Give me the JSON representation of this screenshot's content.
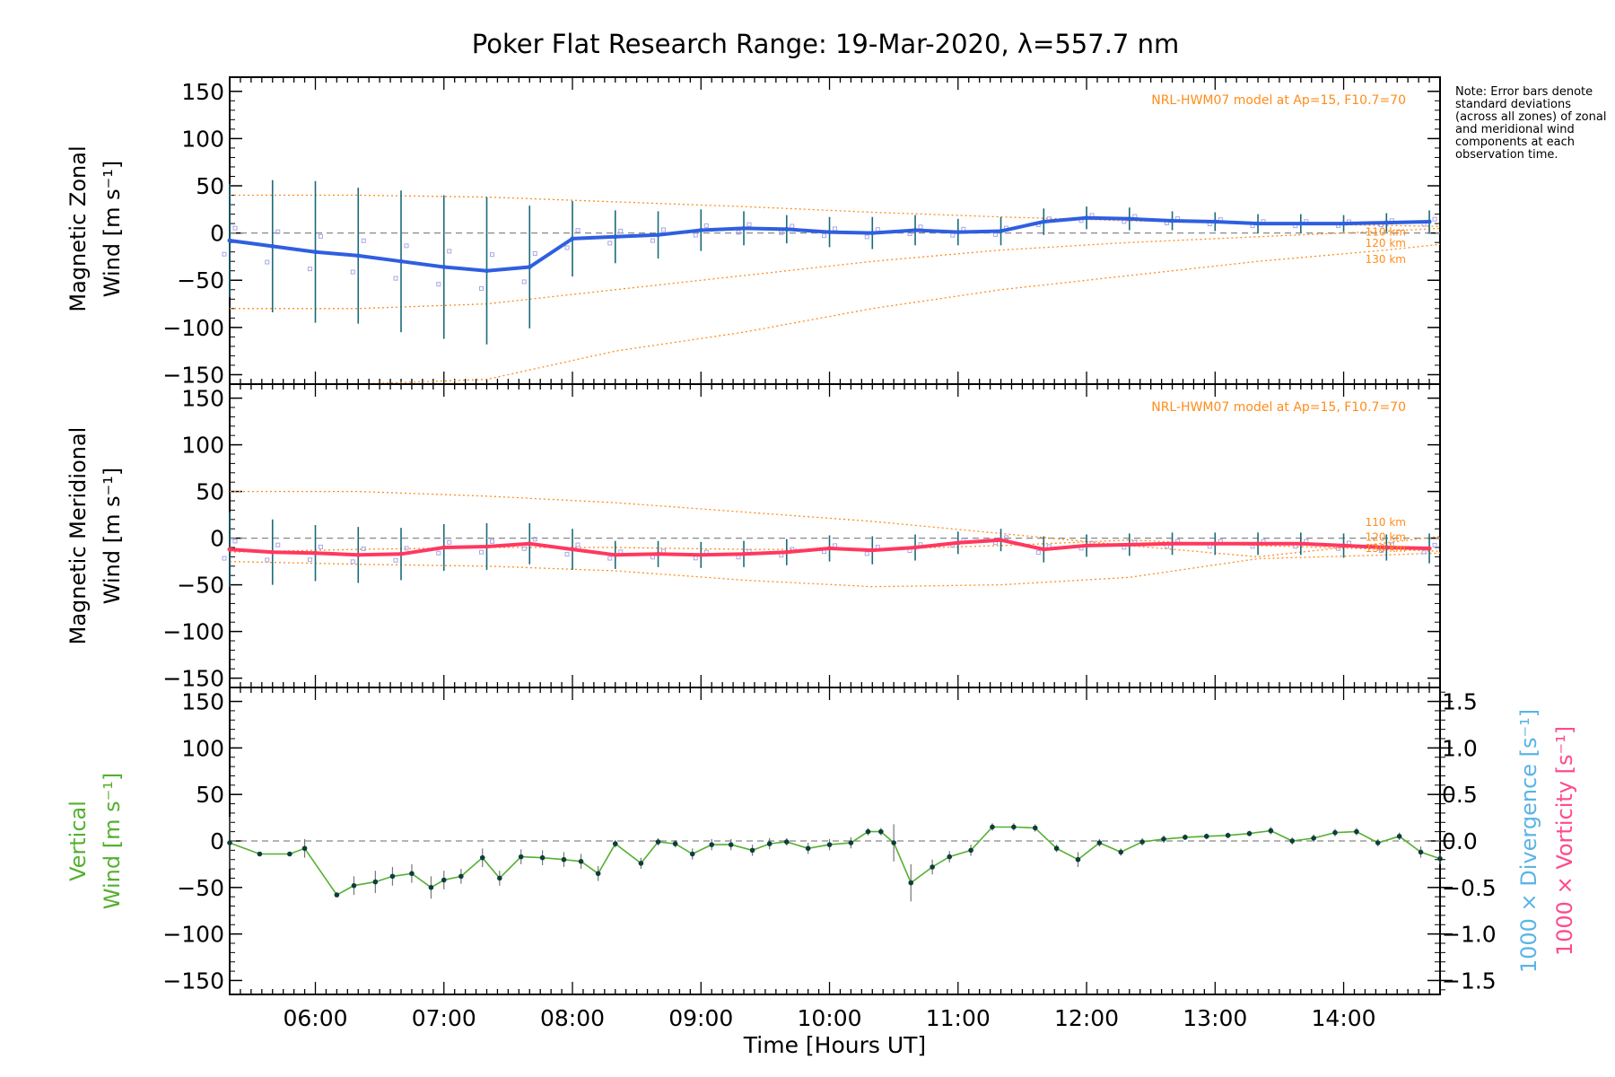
{
  "figure": {
    "title": "Poker Flat Research Range: 19-Mar-2020, λ=557.7 nm",
    "note": "Note: Error bars denote standard deviations (across all zones) of zonal and meridional wind components at each observation time.",
    "model_label": "NRL-HWM07 model at Ap=15, F10.7=70",
    "altitude_labels": [
      "110 km",
      "120 km",
      "130 km"
    ],
    "colors": {
      "zonal": "#2f5fe0",
      "meridional": "#ff3860",
      "vertical": "#55b030",
      "divergence": "#5ab4e6",
      "vorticity": "#ff4a8d",
      "model": "#ff8c1a",
      "errorbar": "#1a6a7a",
      "zone_points": "#a9a6e6"
    }
  },
  "chart_data": [
    {
      "type": "line",
      "name": "zonal",
      "ylabel": "Magnetic Zonal Wind [m s⁻¹]",
      "ylim": [
        -160,
        165
      ],
      "yticks": [
        150,
        100,
        50,
        0,
        -50,
        -100,
        -150
      ],
      "xlim": [
        "05:20",
        "14:45"
      ],
      "x": [
        "05:20",
        "05:40",
        "06:00",
        "06:20",
        "06:40",
        "07:00",
        "07:20",
        "07:40",
        "08:00",
        "08:20",
        "08:40",
        "09:00",
        "09:20",
        "09:40",
        "10:00",
        "10:20",
        "10:40",
        "11:00",
        "11:20",
        "11:40",
        "12:00",
        "12:20",
        "12:40",
        "13:00",
        "13:20",
        "13:40",
        "14:00",
        "14:20",
        "14:40"
      ],
      "y": [
        -8,
        -14,
        -20,
        -24,
        -30,
        -36,
        -40,
        -36,
        -6,
        -4,
        -2,
        3,
        5,
        4,
        1,
        0,
        3,
        1,
        2,
        12,
        16,
        15,
        13,
        12,
        10,
        10,
        10,
        11,
        12
      ],
      "error": [
        60,
        70,
        75,
        72,
        75,
        76,
        78,
        65,
        40,
        28,
        25,
        22,
        18,
        15,
        16,
        17,
        16,
        14,
        15,
        14,
        12,
        12,
        10,
        10,
        10,
        10,
        9,
        10,
        12
      ],
      "model": {
        "x": [
          "05:20",
          "06:20",
          "07:20",
          "08:20",
          "09:20",
          "10:20",
          "11:20",
          "12:20",
          "13:20",
          "14:20",
          "14:45"
        ],
        "110 km": [
          -80,
          -80,
          -75,
          -60,
          -45,
          -30,
          -18,
          -10,
          -4,
          2,
          5
        ],
        "120 km": [
          40,
          40,
          38,
          33,
          28,
          22,
          17,
          13,
          10,
          8,
          7
        ],
        "130 km": [
          -160,
          -160,
          -155,
          -125,
          -105,
          -80,
          -60,
          -45,
          -30,
          -18,
          -12
        ]
      }
    },
    {
      "type": "line",
      "name": "meridional",
      "ylabel": "Magnetic Meridional Wind [m s⁻¹]",
      "ylim": [
        -160,
        165
      ],
      "yticks": [
        150,
        100,
        50,
        0,
        -50,
        -100,
        -150
      ],
      "xlim": [
        "05:20",
        "14:45"
      ],
      "x": [
        "05:20",
        "05:40",
        "06:00",
        "06:20",
        "06:40",
        "07:00",
        "07:20",
        "07:40",
        "08:00",
        "08:20",
        "08:40",
        "09:00",
        "09:20",
        "09:40",
        "10:00",
        "10:20",
        "10:40",
        "11:00",
        "11:20",
        "11:40",
        "12:00",
        "12:20",
        "12:40",
        "13:00",
        "13:20",
        "13:40",
        "14:00",
        "14:20",
        "14:40"
      ],
      "y": [
        -12,
        -15,
        -16,
        -18,
        -17,
        -10,
        -9,
        -6,
        -12,
        -18,
        -17,
        -18,
        -17,
        -15,
        -11,
        -13,
        -10,
        -5,
        -2,
        -12,
        -8,
        -7,
        -6,
        -6,
        -6,
        -6,
        -8,
        -10,
        -11
      ],
      "error": [
        40,
        35,
        30,
        30,
        28,
        25,
        25,
        22,
        22,
        15,
        14,
        14,
        14,
        14,
        14,
        15,
        14,
        12,
        12,
        14,
        12,
        12,
        12,
        12,
        12,
        12,
        13,
        14,
        16
      ],
      "model": {
        "x": [
          "05:20",
          "06:20",
          "07:20",
          "08:20",
          "09:20",
          "10:20",
          "11:20",
          "12:20",
          "13:20",
          "14:20",
          "14:45"
        ],
        "110 km": [
          50,
          50,
          45,
          38,
          28,
          18,
          5,
          -8,
          -20,
          -5,
          2
        ],
        "120 km": [
          -15,
          -12,
          -10,
          -10,
          -12,
          -12,
          -8,
          -2,
          -8,
          -12,
          -14
        ],
        "130 km": [
          -25,
          -28,
          -30,
          -35,
          -45,
          -52,
          -50,
          -42,
          -22,
          -18,
          -16
        ]
      }
    },
    {
      "type": "line",
      "name": "vertical",
      "ylabel": "Vertical Wind [m s⁻¹]",
      "ylabel_right_1": "1000 × Divergence [s⁻¹]",
      "ylabel_right_2": "1000 × Vorticity [s⁻¹]",
      "ylim": [
        -165,
        165
      ],
      "yticks": [
        150,
        100,
        50,
        0,
        -50,
        -100,
        -150
      ],
      "y2lim": [
        -1.65,
        1.65
      ],
      "y2ticks": [
        "1.5",
        "1.0",
        "0.5",
        "0.0",
        "-0.5",
        "-1.0",
        "-1.5"
      ],
      "xticks": [
        "06:00",
        "07:00",
        "08:00",
        "09:00",
        "10:00",
        "11:00",
        "12:00",
        "13:00",
        "14:00"
      ],
      "xlabel": "Time [Hours UT]",
      "xlim": [
        "05:20",
        "14:45"
      ],
      "x": [
        "05:20",
        "05:34",
        "05:48",
        "05:55",
        "06:10",
        "06:18",
        "06:28",
        "06:36",
        "06:45",
        "06:54",
        "07:00",
        "07:08",
        "07:18",
        "07:26",
        "07:36",
        "07:46",
        "07:56",
        "08:04",
        "08:12",
        "08:20",
        "08:32",
        "08:40",
        "08:48",
        "08:56",
        "09:05",
        "09:14",
        "09:24",
        "09:32",
        "09:40",
        "09:50",
        "10:00",
        "10:10",
        "10:18",
        "10:24",
        "10:30",
        "10:38",
        "10:48",
        "10:56",
        "11:06",
        "11:16",
        "11:26",
        "11:36",
        "11:46",
        "11:56",
        "12:06",
        "12:16",
        "12:26",
        "12:36",
        "12:46",
        "12:56",
        "13:06",
        "13:16",
        "13:26",
        "13:36",
        "13:46",
        "13:56",
        "14:06",
        "14:16",
        "14:26",
        "14:36",
        "14:45"
      ],
      "y": [
        -2,
        -14,
        -14,
        -8,
        -58,
        -48,
        -44,
        -38,
        -35,
        -50,
        -42,
        -38,
        -18,
        -40,
        -17,
        -18,
        -20,
        -22,
        -35,
        -3,
        -24,
        -1,
        -3,
        -14,
        -4,
        -4,
        -10,
        -3,
        -1,
        -8,
        -4,
        -2,
        10,
        10,
        -2,
        -45,
        -28,
        -17,
        -10,
        15,
        15,
        14,
        -8,
        -20,
        -2,
        -12,
        -1,
        2,
        4,
        5,
        6,
        8,
        11,
        0,
        3,
        9,
        10,
        -2,
        5,
        -12,
        -19
      ],
      "error": [
        28,
        0,
        0,
        10,
        0,
        10,
        12,
        10,
        10,
        12,
        10,
        8,
        10,
        8,
        8,
        8,
        8,
        8,
        8,
        4,
        6,
        4,
        4,
        6,
        6,
        6,
        6,
        6,
        4,
        6,
        6,
        6,
        4,
        4,
        20,
        20,
        8,
        6,
        6,
        4,
        4,
        4,
        4,
        8,
        4,
        4,
        4,
        4,
        3,
        3,
        3,
        3,
        4,
        4,
        4,
        4,
        4,
        4,
        4,
        6,
        6
      ]
    }
  ]
}
